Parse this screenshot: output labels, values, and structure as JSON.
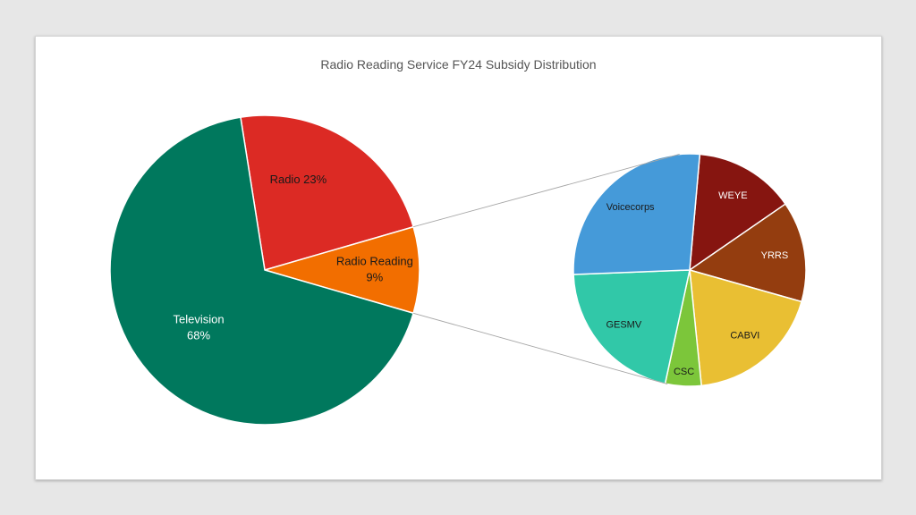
{
  "chart_data": {
    "type": "pie",
    "subtype": "pie-of-pie",
    "title": "Radio Reading Service FY24 Subsidy Distribution",
    "main_pie": {
      "slices": [
        {
          "label": "Radio 23%",
          "percent": 23,
          "color": "#dc2a24",
          "label_color": "#1a1a1a"
        },
        {
          "label_lines": [
            "Radio Reading",
            "9%"
          ],
          "percent": 9,
          "color": "#f26e00",
          "label_color": "#1a1a1a"
        },
        {
          "label_lines": [
            "Television",
            "68%"
          ],
          "percent": 68,
          "color": "#00785d",
          "label_color": "#ffffff"
        }
      ]
    },
    "secondary_pie": {
      "expands": "Radio Reading",
      "slices": [
        {
          "label": "WEYE",
          "percent": 14,
          "color": "#861510",
          "label_color": "#ffffff"
        },
        {
          "label": "YRRS",
          "percent": 14,
          "color": "#943d0f",
          "label_color": "#ffffff"
        },
        {
          "label": "CABVI",
          "percent": 19,
          "color": "#e9bf33",
          "label_color": "#1a1a1a"
        },
        {
          "label": "CSC",
          "percent": 5,
          "color": "#7cc63a",
          "label_color": "#1a1a1a"
        },
        {
          "label": "GESMV",
          "percent": 21,
          "color": "#31c8a8",
          "label_color": "#1a1a1a"
        },
        {
          "label": "Voicecorps",
          "percent": 27,
          "color": "#459ad9",
          "label_color": "#1a1a1a"
        }
      ]
    },
    "legend": "none"
  }
}
